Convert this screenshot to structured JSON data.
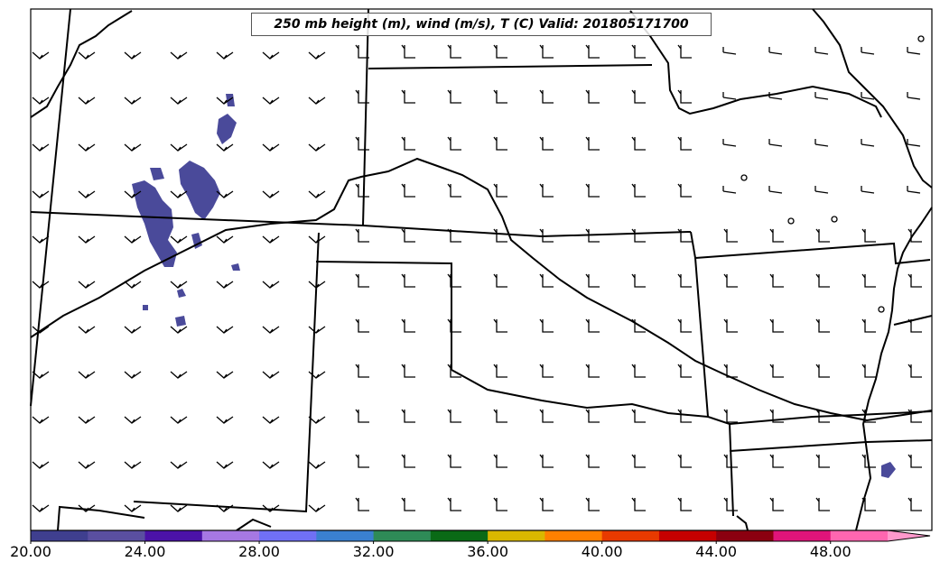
{
  "title": "250 mb height (m), wind (m/s), T (C) Valid: 201805171700",
  "colorbar": {
    "min": 20,
    "max": 51.5,
    "step": 2,
    "tick_labels": [
      "20.00",
      "24.00",
      "28.00",
      "32.00",
      "36.00",
      "40.00",
      "44.00",
      "48.00"
    ],
    "colors": [
      "#3f3f8f",
      "#5a4fa0",
      "#4b12a8",
      "#a678e3",
      "#7070f5",
      "#3a80d0",
      "#2e8b57",
      "#0a6a16",
      "#d9b800",
      "#ff8000",
      "#e83a00",
      "#c60000",
      "#8b0010",
      "#e0147a",
      "#ff66b0"
    ],
    "extend_color": "#ff99cc"
  },
  "colors": {
    "shade": "#4a4a9a",
    "border": "#000000"
  }
}
